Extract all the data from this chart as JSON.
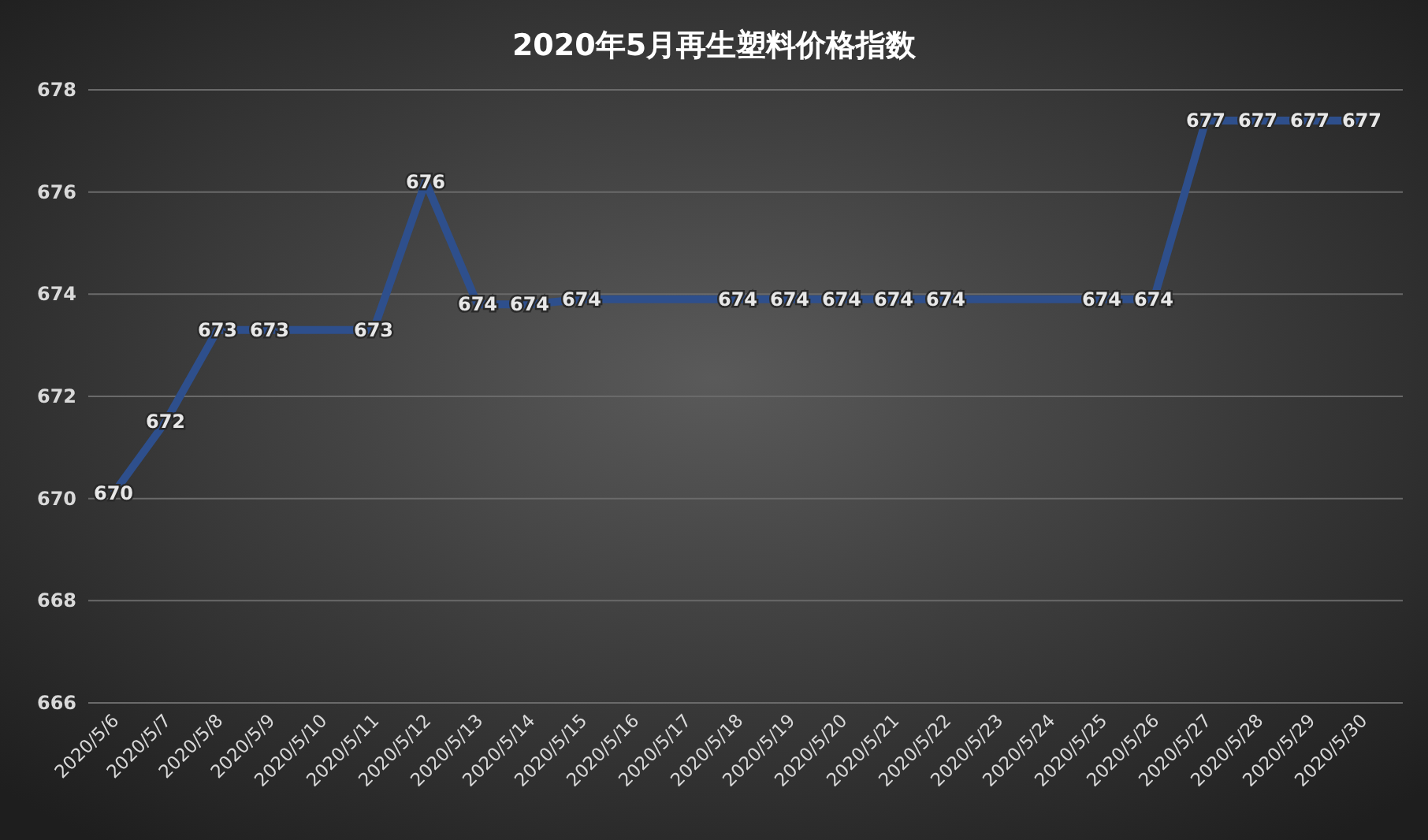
{
  "chart_data": {
    "type": "line",
    "title": "2020年5月再生塑料价格指数",
    "categories": [
      "2020/5/6",
      "2020/5/7",
      "2020/5/8",
      "2020/5/9",
      "2020/5/10",
      "2020/5/11",
      "2020/5/12",
      "2020/5/13",
      "2020/5/14",
      "2020/5/15",
      "2020/5/16",
      "2020/5/17",
      "2020/5/18",
      "2020/5/19",
      "2020/5/20",
      "2020/5/21",
      "2020/5/22",
      "2020/5/23",
      "2020/5/24",
      "2020/5/25",
      "2020/5/26",
      "2020/5/27",
      "2020/5/28",
      "2020/5/29",
      "2020/5/30"
    ],
    "series": [
      {
        "color": "#2e4f8c",
        "values": [
          670.1,
          671.5,
          673.3,
          673.3,
          673.3,
          673.3,
          676.2,
          673.8,
          673.8,
          673.9,
          673.9,
          673.9,
          673.9,
          673.9,
          673.9,
          673.9,
          673.9,
          673.9,
          673.9,
          673.9,
          673.9,
          677.4,
          677.4,
          677.4,
          677.4
        ],
        "value_labels": [
          "670",
          "672",
          "673",
          "673",
          null,
          "673",
          "676",
          "674",
          "674",
          "674",
          null,
          null,
          "674",
          "674",
          "674",
          "674",
          "674",
          null,
          null,
          "674",
          "674",
          "677",
          "677",
          "677",
          "677"
        ]
      }
    ],
    "ylim": [
      666,
      678
    ],
    "yticks": [
      666,
      668,
      670,
      672,
      674,
      676,
      678
    ],
    "grid": "y",
    "marker": "none",
    "line_style": "solid"
  }
}
